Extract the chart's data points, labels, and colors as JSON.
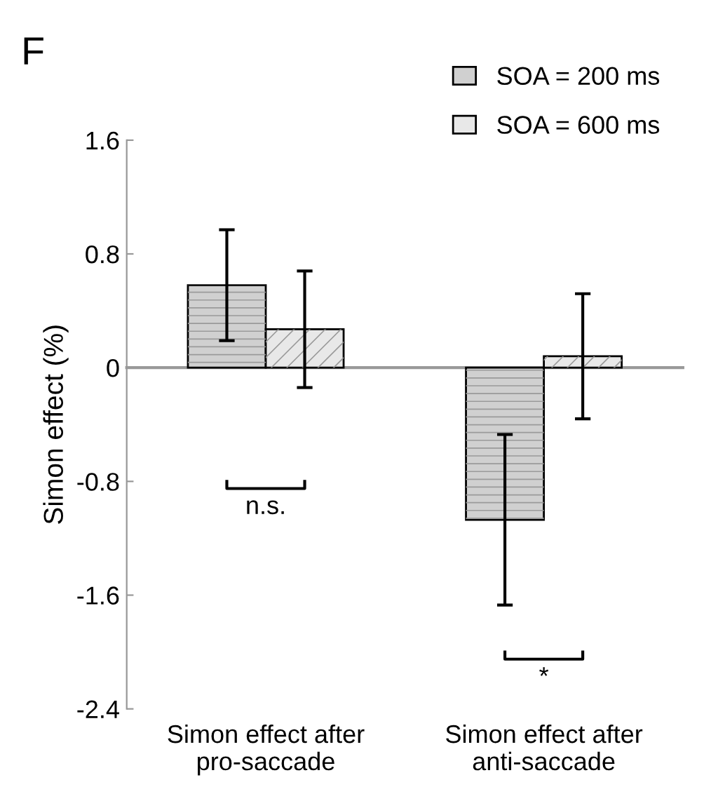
{
  "chart_data": {
    "type": "bar",
    "title": "F",
    "ylabel": "Simon effect (%)",
    "categories": [
      "Simon effect after\npro-saccade",
      "Simon effect after\nanti-saccade"
    ],
    "series": [
      {
        "name": "SOA = 200 ms",
        "color": "#d0d0d0",
        "values": [
          0.58,
          -1.07
        ],
        "errors": [
          0.39,
          0.6
        ]
      },
      {
        "name": "SOA = 600 ms",
        "color": "#e8e8e8",
        "values": [
          0.27,
          0.08
        ],
        "errors": [
          0.41,
          0.44
        ]
      }
    ],
    "ylim": [
      -2.4,
      1.6
    ],
    "yticks": [
      {
        "value": -2.4,
        "label": "-2.4"
      },
      {
        "value": -1.6,
        "label": "-1.6"
      },
      {
        "value": -0.8,
        "label": "-0.8"
      },
      0,
      0.8,
      1.6
    ],
    "annotations": [
      "n.s.",
      "*"
    ],
    "legend": "top right"
  }
}
